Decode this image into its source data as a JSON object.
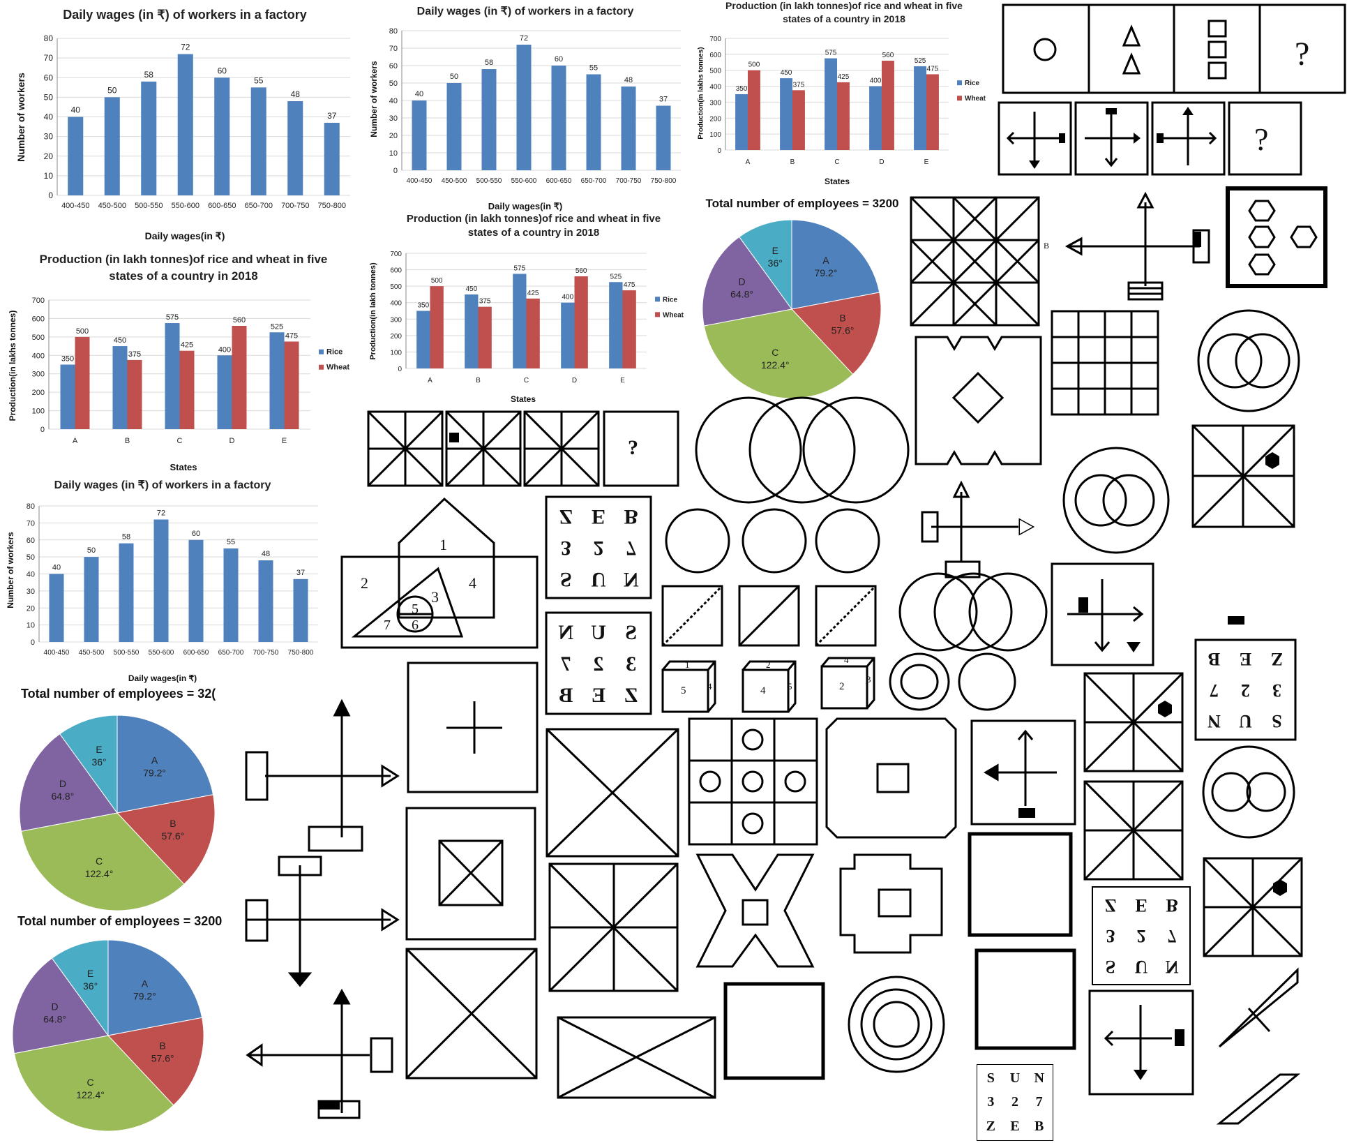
{
  "charts": {
    "wages": {
      "title": "Daily wages (in ₹) of workers in a factory",
      "xlabel": "Daily wages(in ₹)",
      "ylabel": "Number of workers"
    },
    "production": {
      "title_line1": "Production (in lakh tonnes)of rice and wheat in five",
      "title_line2": "states of a country in 2018",
      "xlabel": "States",
      "ylabel": "Production(in lakhs tonnes)",
      "ylabel_alt": "Production(in lakh tonnes)"
    },
    "pie": {
      "title": "Total number of employees = 3200",
      "title_cut1": "Total number of employees = 32(",
      "title_cut2": "Total number of employees = 3200"
    }
  },
  "chart_data": [
    {
      "type": "bar",
      "title": "Daily wages (in ₹) of workers in a factory",
      "xlabel": "Daily wages(in ₹)",
      "ylabel": "Number of workers",
      "categories": [
        "400-450",
        "450-500",
        "500-550",
        "550-600",
        "600-650",
        "650-700",
        "700-750",
        "750-800"
      ],
      "values": [
        40,
        50,
        58,
        72,
        60,
        55,
        48,
        37
      ],
      "ylim": [
        0,
        80
      ],
      "yticks": [
        0,
        10,
        20,
        30,
        40,
        50,
        60,
        70,
        80
      ],
      "color": "#4f81bd"
    },
    {
      "type": "bar",
      "title": "Production (in lakh tonnes)of rice and wheat in five states of a country in 2018",
      "xlabel": "States",
      "ylabel": "Production(in lakhs tonnes)",
      "categories": [
        "A",
        "B",
        "C",
        "D",
        "E"
      ],
      "series": [
        {
          "name": "Rice",
          "values": [
            350,
            450,
            575,
            400,
            525
          ],
          "color": "#4f81bd"
        },
        {
          "name": "Wheat",
          "values": [
            500,
            375,
            425,
            560,
            475
          ],
          "color": "#c0504d"
        }
      ],
      "ylim": [
        0,
        700
      ],
      "yticks": [
        0,
        100,
        200,
        300,
        400,
        500,
        600,
        700
      ],
      "legend": "right"
    },
    {
      "type": "pie",
      "title": "Total number of employees = 3200",
      "slices": [
        {
          "label": "A",
          "value": 79.2,
          "text": "79.2°",
          "color": "#4f81bd"
        },
        {
          "label": "B",
          "value": 57.6,
          "text": "57.6°",
          "color": "#c0504d"
        },
        {
          "label": "C",
          "value": 122.4,
          "text": "122.4°",
          "color": "#9bbb59"
        },
        {
          "label": "D",
          "value": 64.8,
          "text": "64.8°",
          "color": "#8064a2"
        },
        {
          "label": "E",
          "value": 36,
          "text": "36°",
          "color": "#4bacc6"
        }
      ]
    }
  ],
  "puzzles": {
    "question_mark": "?",
    "venn_numbers": [
      "1",
      "2",
      "3",
      "4",
      "5",
      "6",
      "7"
    ],
    "letter_grid": [
      "S",
      "U",
      "N",
      "3",
      "2",
      "7",
      "Z",
      "E",
      "B"
    ],
    "cube_faces": [
      [
        "1",
        "5",
        "4"
      ],
      [
        "2",
        "4",
        "5"
      ],
      [
        "4",
        "2",
        "3"
      ]
    ],
    "arrow_label_b": "B"
  }
}
